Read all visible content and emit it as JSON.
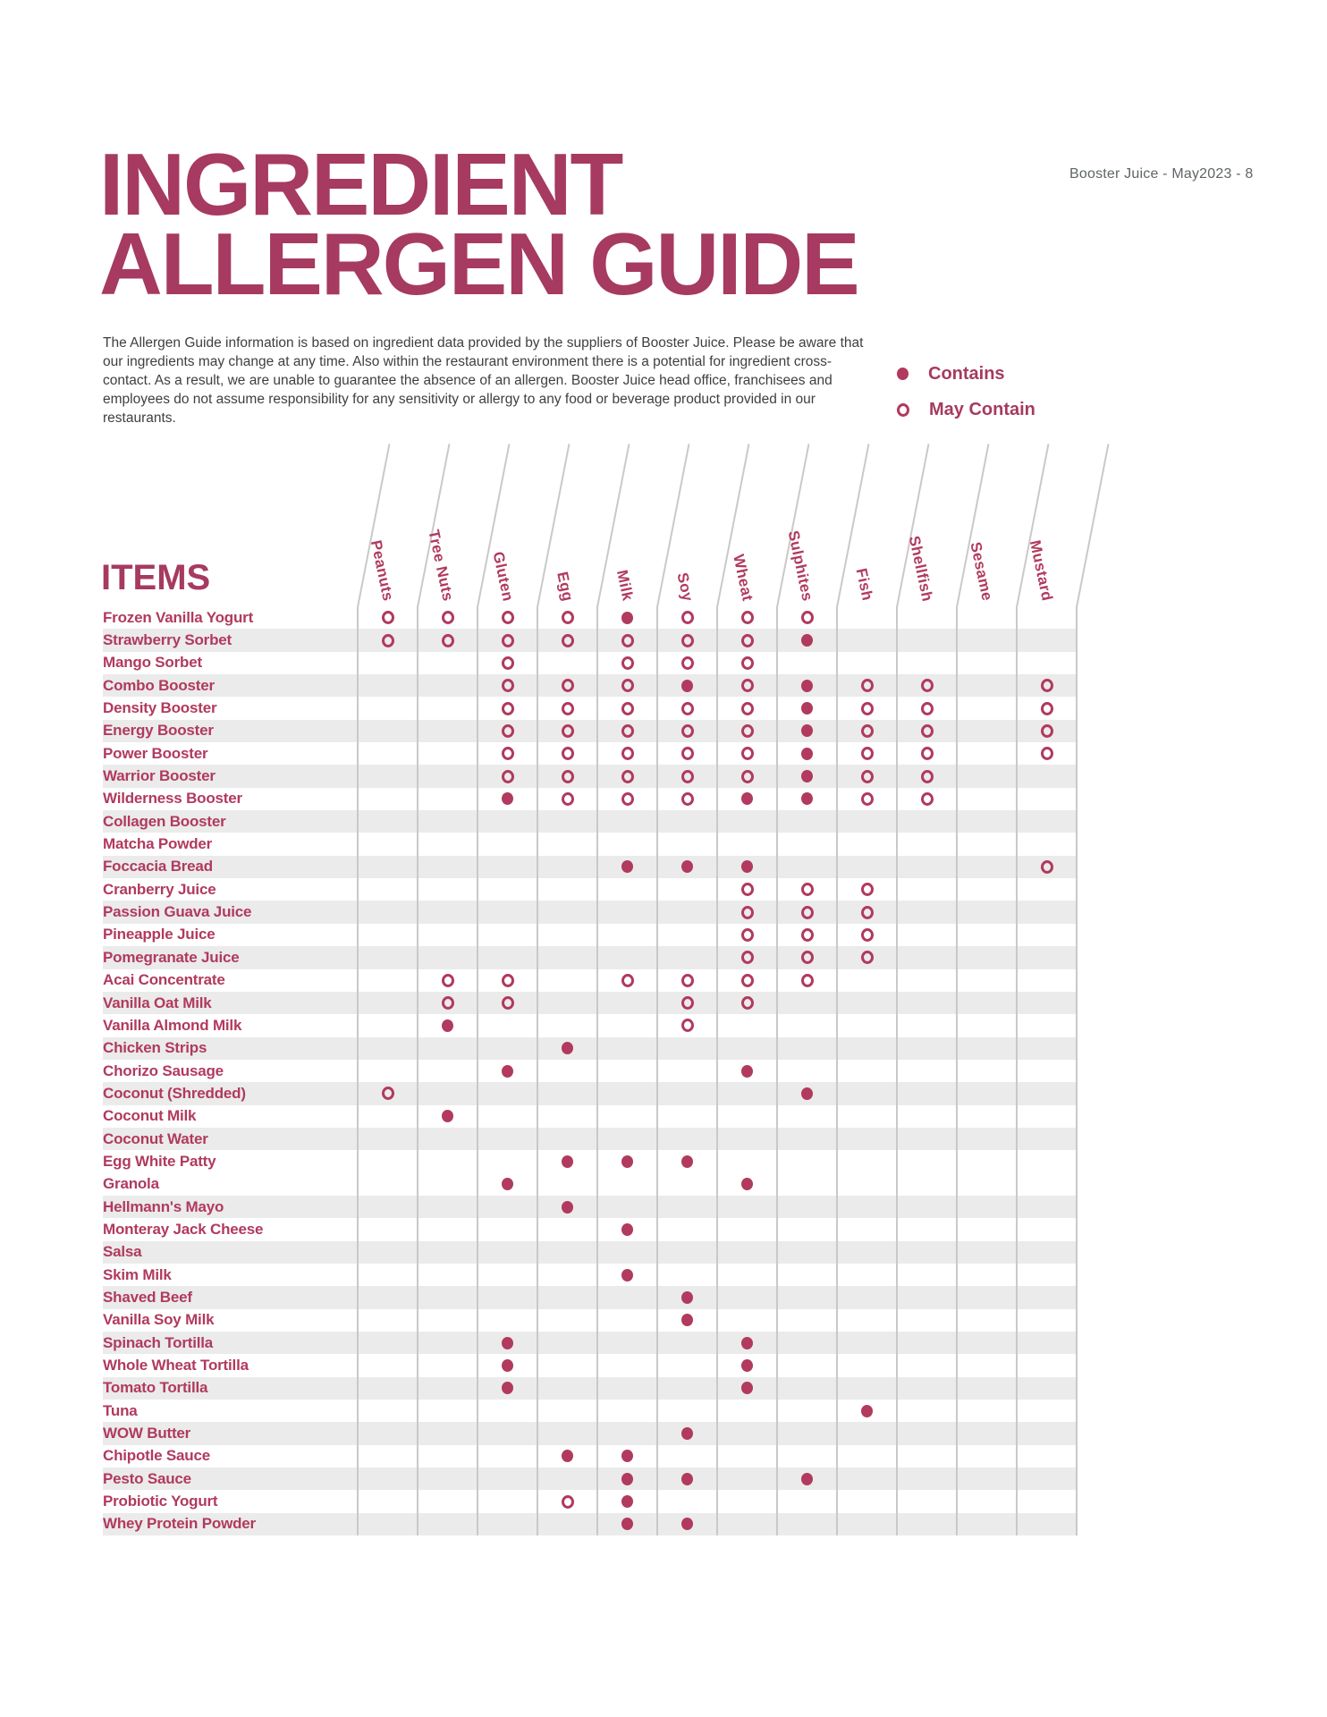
{
  "page_ref": "Booster Juice - May2023 - 8",
  "header": {
    "title_line1": "INGREDIENT",
    "title_line2": "ALLERGEN GUIDE",
    "disclaimer": "The Allergen Guide information is based on ingredient data provided by the suppliers of Booster Juice. Please be aware that our ingredients may change at any time.  Also within the restaurant environment there is a potential for ingredient cross-contact.  As a result, we are unable to guarantee the absence of an allergen. Booster Juice head office, franchisees and employees do not assume responsibility for any sensitivity or allergy to any food or beverage product provided in our restaurants."
  },
  "legend": {
    "contains_label": "Contains",
    "may_contain_label": "May Contain"
  },
  "table": {
    "items_header": "ITEMS",
    "columns": [
      "Peanuts",
      "Tree Nuts",
      "Gluten",
      "Egg",
      "Milk",
      "Soy",
      "Wheat",
      "Sulphites",
      "Fish",
      "Shellfish",
      "Sesame",
      "Mustard"
    ],
    "mark_key": {
      "C": "Contains",
      "M": "May Contain"
    },
    "rows": [
      {
        "item": "Frozen Vanilla Yogurt",
        "marks": [
          "M",
          "M",
          "M",
          "M",
          "C",
          "M",
          "M",
          "M",
          "",
          "",
          "",
          ""
        ]
      },
      {
        "item": "Strawberry Sorbet",
        "marks": [
          "M",
          "M",
          "M",
          "M",
          "M",
          "M",
          "M",
          "C",
          "",
          "",
          "",
          ""
        ]
      },
      {
        "item": "Mango Sorbet",
        "marks": [
          "",
          "",
          "M",
          "",
          "M",
          "M",
          "M",
          "",
          "",
          "",
          "",
          ""
        ]
      },
      {
        "item": "Combo Booster",
        "marks": [
          "",
          "",
          "M",
          "M",
          "M",
          "C",
          "M",
          "C",
          "M",
          "M",
          "",
          "M"
        ]
      },
      {
        "item": "Density Booster",
        "marks": [
          "",
          "",
          "M",
          "M",
          "M",
          "M",
          "M",
          "C",
          "M",
          "M",
          "",
          "M"
        ]
      },
      {
        "item": "Energy Booster",
        "marks": [
          "",
          "",
          "M",
          "M",
          "M",
          "M",
          "M",
          "C",
          "M",
          "M",
          "",
          "M"
        ]
      },
      {
        "item": "Power Booster",
        "marks": [
          "",
          "",
          "M",
          "M",
          "M",
          "M",
          "M",
          "C",
          "M",
          "M",
          "",
          "M"
        ]
      },
      {
        "item": "Warrior Booster",
        "marks": [
          "",
          "",
          "M",
          "M",
          "M",
          "M",
          "M",
          "C",
          "M",
          "M",
          "",
          ""
        ]
      },
      {
        "item": "Wilderness Booster",
        "marks": [
          "",
          "",
          "C",
          "M",
          "M",
          "M",
          "C",
          "C",
          "M",
          "M",
          "",
          ""
        ]
      },
      {
        "item": "Collagen Booster",
        "marks": [
          "",
          "",
          "",
          "",
          "",
          "",
          "",
          "",
          "",
          "",
          "",
          ""
        ]
      },
      {
        "item": "Matcha Powder",
        "marks": [
          "",
          "",
          "",
          "",
          "",
          "",
          "",
          "",
          "",
          "",
          "",
          ""
        ]
      },
      {
        "item": "Foccacia Bread",
        "marks": [
          "",
          "",
          "",
          "",
          "C",
          "C",
          "C",
          "",
          "",
          "",
          "",
          "M"
        ]
      },
      {
        "item": "Cranberry Juice",
        "marks": [
          "",
          "",
          "",
          "",
          "",
          "",
          "M",
          "M",
          "M",
          "",
          "",
          ""
        ]
      },
      {
        "item": "Passion Guava Juice",
        "marks": [
          "",
          "",
          "",
          "",
          "",
          "",
          "M",
          "M",
          "M",
          "",
          "",
          ""
        ]
      },
      {
        "item": "Pineapple Juice",
        "marks": [
          "",
          "",
          "",
          "",
          "",
          "",
          "M",
          "M",
          "M",
          "",
          "",
          ""
        ]
      },
      {
        "item": "Pomegranate Juice",
        "marks": [
          "",
          "",
          "",
          "",
          "",
          "",
          "M",
          "M",
          "M",
          "",
          "",
          ""
        ]
      },
      {
        "item": "Acai Concentrate",
        "marks": [
          "",
          "M",
          "M",
          "",
          "M",
          "M",
          "M",
          "M",
          "",
          "",
          "",
          ""
        ]
      },
      {
        "item": "Vanilla Oat Milk",
        "marks": [
          "",
          "M",
          "M",
          "",
          "",
          "M",
          "M",
          "",
          "",
          "",
          "",
          ""
        ]
      },
      {
        "item": "Vanilla Almond Milk",
        "marks": [
          "",
          "C",
          "",
          "",
          "",
          "M",
          "",
          "",
          "",
          "",
          "",
          ""
        ]
      },
      {
        "item": "Chicken Strips",
        "marks": [
          "",
          "",
          "",
          "C",
          "",
          "",
          "",
          "",
          "",
          "",
          "",
          ""
        ]
      },
      {
        "item": "Chorizo Sausage",
        "marks": [
          "",
          "",
          "C",
          "",
          "",
          "",
          "C",
          "",
          "",
          "",
          "",
          ""
        ]
      },
      {
        "item": "Coconut (Shredded)",
        "marks": [
          "M",
          "",
          "",
          "",
          "",
          "",
          "",
          "C",
          "",
          "",
          "",
          ""
        ]
      },
      {
        "item": "Coconut Milk",
        "marks": [
          "",
          "C",
          "",
          "",
          "",
          "",
          "",
          "",
          "",
          "",
          "",
          ""
        ]
      },
      {
        "item": "Coconut Water",
        "marks": [
          "",
          "",
          "",
          "",
          "",
          "",
          "",
          "",
          "",
          "",
          "",
          ""
        ]
      },
      {
        "item": "Egg White Patty",
        "marks": [
          "",
          "",
          "",
          "C",
          "C",
          "C",
          "",
          "",
          "",
          "",
          "",
          ""
        ]
      },
      {
        "item": "Granola",
        "marks": [
          "",
          "",
          "C",
          "",
          "",
          "",
          "C",
          "",
          "",
          "",
          "",
          ""
        ]
      },
      {
        "item": "Hellmann's Mayo",
        "marks": [
          "",
          "",
          "",
          "C",
          "",
          "",
          "",
          "",
          "",
          "",
          "",
          ""
        ]
      },
      {
        "item": "Monteray Jack Cheese",
        "marks": [
          "",
          "",
          "",
          "",
          "C",
          "",
          "",
          "",
          "",
          "",
          "",
          ""
        ]
      },
      {
        "item": "Salsa",
        "marks": [
          "",
          "",
          "",
          "",
          "",
          "",
          "",
          "",
          "",
          "",
          "",
          ""
        ]
      },
      {
        "item": "Skim Milk",
        "marks": [
          "",
          "",
          "",
          "",
          "C",
          "",
          "",
          "",
          "",
          "",
          "",
          ""
        ]
      },
      {
        "item": "Shaved Beef",
        "marks": [
          "",
          "",
          "",
          "",
          "",
          "C",
          "",
          "",
          "",
          "",
          "",
          ""
        ]
      },
      {
        "item": "Vanilla Soy Milk",
        "marks": [
          "",
          "",
          "",
          "",
          "",
          "C",
          "",
          "",
          "",
          "",
          "",
          ""
        ]
      },
      {
        "item": "Spinach Tortilla",
        "marks": [
          "",
          "",
          "C",
          "",
          "",
          "",
          "C",
          "",
          "",
          "",
          "",
          ""
        ]
      },
      {
        "item": "Whole Wheat Tortilla",
        "marks": [
          "",
          "",
          "C",
          "",
          "",
          "",
          "C",
          "",
          "",
          "",
          "",
          ""
        ]
      },
      {
        "item": "Tomato Tortilla",
        "marks": [
          "",
          "",
          "C",
          "",
          "",
          "",
          "C",
          "",
          "",
          "",
          "",
          ""
        ]
      },
      {
        "item": "Tuna",
        "marks": [
          "",
          "",
          "",
          "",
          "",
          "",
          "",
          "",
          "C",
          "",
          "",
          ""
        ]
      },
      {
        "item": "WOW Butter",
        "marks": [
          "",
          "",
          "",
          "",
          "",
          "C",
          "",
          "",
          "",
          "",
          "",
          ""
        ]
      },
      {
        "item": "Chipotle Sauce",
        "marks": [
          "",
          "",
          "",
          "C",
          "C",
          "",
          "",
          "",
          "",
          "",
          "",
          ""
        ]
      },
      {
        "item": "Pesto Sauce",
        "marks": [
          "",
          "",
          "",
          "",
          "C",
          "C",
          "",
          "C",
          "",
          "",
          "",
          ""
        ]
      },
      {
        "item": "Probiotic Yogurt",
        "marks": [
          "",
          "",
          "",
          "M",
          "C",
          "",
          "",
          "",
          "",
          "",
          "",
          ""
        ]
      },
      {
        "item": "Whey Protein Powder",
        "marks": [
          "",
          "",
          "",
          "",
          "C",
          "C",
          "",
          "",
          "",
          "",
          "",
          ""
        ]
      }
    ]
  },
  "colors": {
    "accent": "#a63a60",
    "row_accent": "#b13a5e",
    "stripe": "#ebebeb",
    "grid_line": "#c9c9c9",
    "body_text": "#3f3f3f",
    "page_ref_gray": "#5f6468"
  }
}
